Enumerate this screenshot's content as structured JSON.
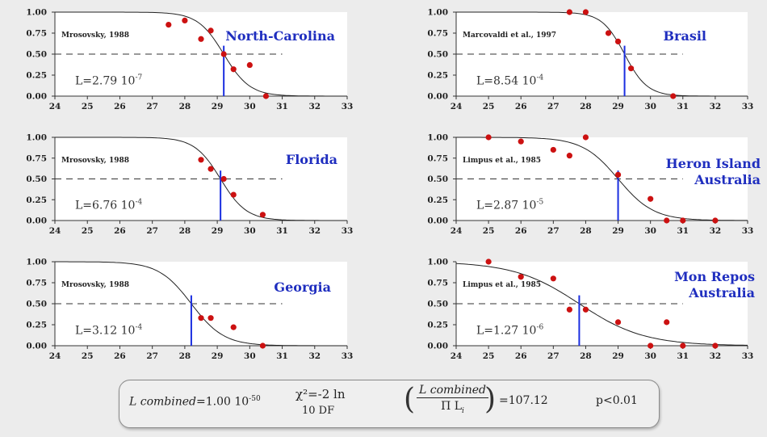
{
  "chart_data": [
    {
      "type": "scatter",
      "title": "North-Carolina",
      "source": "Mrosovsky, 1988",
      "likelihood": {
        "prefix": "L=2.79 10",
        "exp": "-7"
      },
      "xlim": [
        24,
        33
      ],
      "ylim": [
        0,
        1
      ],
      "xticks": [
        "24",
        "25",
        "26",
        "27",
        "28",
        "29",
        "30",
        "31",
        "32",
        "33"
      ],
      "yticks": [
        "0.00",
        "0.25",
        "0.50",
        "0.75",
        "1.00"
      ],
      "pivotal": 29.2,
      "curve_scale": 0.4,
      "x": [
        27.5,
        28.0,
        28.5,
        28.8,
        29.2,
        29.5,
        30.0,
        30.5
      ],
      "y": [
        0.85,
        0.9,
        0.68,
        0.78,
        0.5,
        0.32,
        0.37,
        0.0
      ]
    },
    {
      "type": "scatter",
      "title": "Brasil",
      "source": "Marcovaldi et al., 1997",
      "likelihood": {
        "prefix": "L=8.54 10",
        "exp": "-4"
      },
      "xlim": [
        24,
        33
      ],
      "ylim": [
        0,
        1
      ],
      "xticks": [
        "24",
        "25",
        "26",
        "27",
        "28",
        "29",
        "30",
        "31",
        "32",
        "33"
      ],
      "yticks": [
        "0.00",
        "0.25",
        "0.50",
        "0.75",
        "1.00"
      ],
      "pivotal": 29.2,
      "curve_scale": 0.35,
      "x": [
        27.5,
        28.0,
        28.7,
        29.0,
        29.4,
        30.7
      ],
      "y": [
        1.0,
        1.0,
        0.75,
        0.65,
        0.33,
        0.0
      ]
    },
    {
      "type": "scatter",
      "title": "Florida",
      "source": "Mrosovsky, 1988",
      "likelihood": {
        "prefix": "L=6.76 10",
        "exp": "-4"
      },
      "xlim": [
        24,
        33
      ],
      "ylim": [
        0,
        1
      ],
      "xticks": [
        "24",
        "25",
        "26",
        "27",
        "28",
        "29",
        "30",
        "31",
        "32",
        "33"
      ],
      "yticks": [
        "0.00",
        "0.25",
        "0.50",
        "0.75",
        "1.00"
      ],
      "pivotal": 29.1,
      "curve_scale": 0.4,
      "x": [
        28.5,
        28.8,
        29.2,
        29.5,
        30.4
      ],
      "y": [
        0.73,
        0.62,
        0.5,
        0.31,
        0.07
      ]
    },
    {
      "type": "scatter",
      "title": "Heron Island\nAustralia",
      "source": "Limpus et al., 1985",
      "likelihood": {
        "prefix": "L=2.87 10",
        "exp": "-5"
      },
      "xlim": [
        24,
        33
      ],
      "ylim": [
        0,
        1
      ],
      "xticks": [
        "24",
        "25",
        "26",
        "27",
        "28",
        "29",
        "30",
        "31",
        "32",
        "33"
      ],
      "yticks": [
        "0.00",
        "0.25",
        "0.50",
        "0.75",
        "1.00"
      ],
      "pivotal": 29.0,
      "curve_scale": 0.55,
      "x": [
        25.0,
        26.0,
        27.0,
        27.5,
        28.0,
        29.0,
        30.0,
        30.5,
        31.0,
        32.0
      ],
      "y": [
        1.0,
        0.95,
        0.85,
        0.78,
        1.0,
        0.55,
        0.26,
        0.0,
        0.0,
        0.0
      ]
    },
    {
      "type": "scatter",
      "title": "Georgia",
      "source": "Mrosovsky, 1988",
      "likelihood": {
        "prefix": "L=3.12 10",
        "exp": "-4"
      },
      "xlim": [
        24,
        33
      ],
      "ylim": [
        0,
        1
      ],
      "xticks": [
        "24",
        "25",
        "26",
        "27",
        "28",
        "29",
        "30",
        "31",
        "32",
        "33"
      ],
      "yticks": [
        "0.00",
        "0.25",
        "0.50",
        "0.75",
        "1.00"
      ],
      "pivotal": 28.2,
      "curve_scale": 0.5,
      "x": [
        28.5,
        28.8,
        29.5,
        30.4
      ],
      "y": [
        0.33,
        0.33,
        0.22,
        0.0
      ]
    },
    {
      "type": "scatter",
      "title": "Mon Repos\nAustralia",
      "source": "Limpus et al., 1985",
      "likelihood": {
        "prefix": "L=1.27 10",
        "exp": "-6"
      },
      "xlim": [
        24,
        33
      ],
      "ylim": [
        0,
        1
      ],
      "xticks": [
        "24",
        "25",
        "26",
        "27",
        "28",
        "29",
        "30",
        "31",
        "32",
        "33"
      ],
      "yticks": [
        "0.00",
        "0.25",
        "0.50",
        "0.75",
        "1.00"
      ],
      "pivotal": 27.8,
      "curve_scale": 1.0,
      "x": [
        25.0,
        26.0,
        27.0,
        27.5,
        28.0,
        29.0,
        30.0,
        30.5,
        31.0,
        32.0
      ],
      "y": [
        1.0,
        0.82,
        0.8,
        0.43,
        0.43,
        0.28,
        0.0,
        0.28,
        0.0,
        0.0
      ]
    }
  ],
  "formula": {
    "lcombined_label": "L combined",
    "lcombined_value": "=1.00 10",
    "lcombined_exp": "-50",
    "chi_text": "χ²=-2 ln",
    "df_text": "10 DF",
    "frac_num": "L combined",
    "frac_den": "Π L",
    "frac_den_sub": "i",
    "result": "=107.12",
    "p_value": "p<0.01"
  },
  "colors": {
    "point": "#cc1111",
    "pivotal_line": "#1a2ee0",
    "title": "#1f2ebf",
    "curve": "#222222",
    "plot_bg": "#ffffff"
  }
}
